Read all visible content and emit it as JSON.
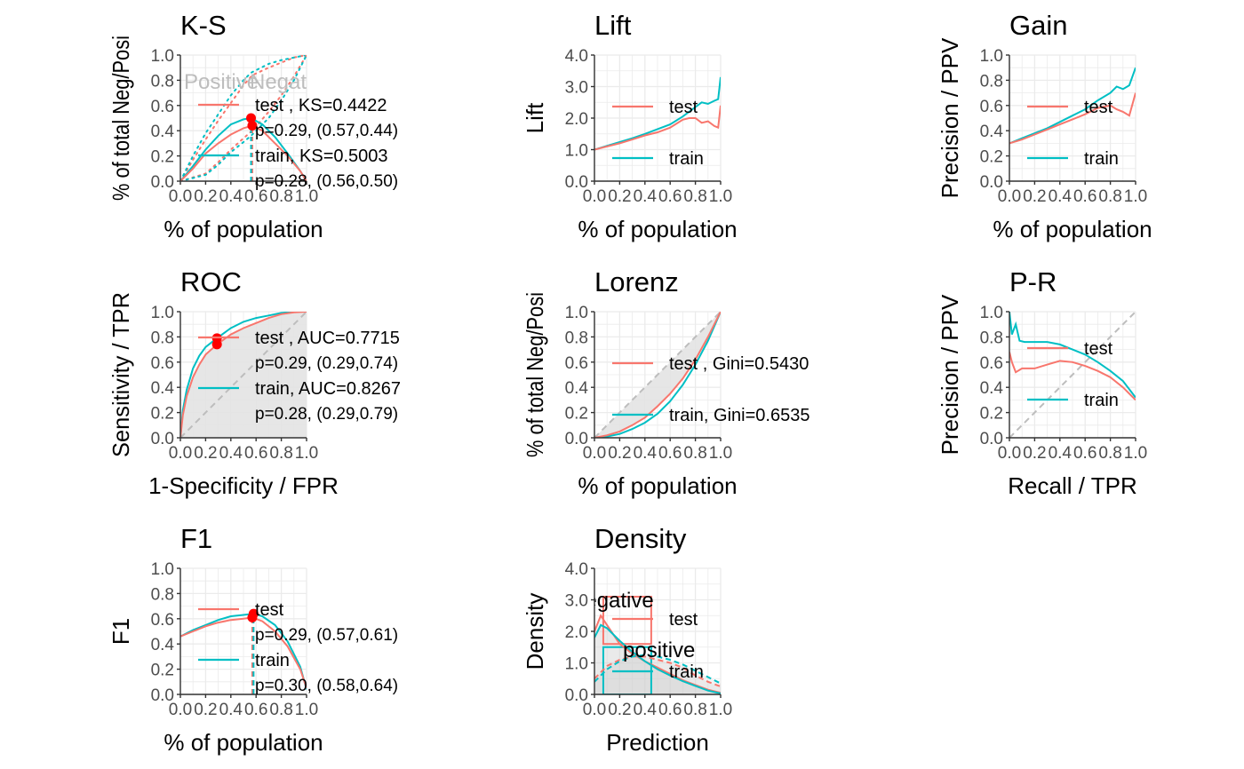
{
  "colors": {
    "test": "#F8766D",
    "train": "#00BFC4",
    "point": "#FF0000",
    "grid": "#EBEBEB",
    "diag": "#BDBDBD",
    "shade": "#E3E3E3"
  },
  "panels": [
    {
      "id": "ks",
      "title": "K-S",
      "xlabel": "% of population",
      "ylabel": "% of total Neg/Posi",
      "xticks": [
        "0.0",
        "0.2",
        "0.4",
        "0.6",
        "0.8",
        "1.0"
      ],
      "yticks": [
        "0.0",
        "0.2",
        "0.4",
        "0.6",
        "0.8",
        "1.0"
      ],
      "annotations": [
        "Positive",
        "Negative"
      ],
      "legend": [
        {
          "series": "test",
          "lines": [
            "test , KS=0.4422",
            "p=0.29, (0.57,0.44)"
          ]
        },
        {
          "series": "train",
          "lines": [
            "train, KS=0.5003",
            "p=0.28, (0.56,0.50)"
          ]
        }
      ]
    },
    {
      "id": "lift",
      "title": "Lift",
      "xlabel": "% of population",
      "ylabel": "Lift",
      "xticks": [
        "0.0",
        "0.2",
        "0.4",
        "0.6",
        "0.8",
        "1.0"
      ],
      "yticks": [
        "0.0",
        "1.0",
        "2.0",
        "3.0",
        "4.0"
      ],
      "legend": [
        {
          "series": "test",
          "lines": [
            "test"
          ]
        },
        {
          "series": "train",
          "lines": [
            "train"
          ]
        }
      ]
    },
    {
      "id": "gain",
      "title": "Gain",
      "xlabel": "% of population",
      "ylabel": "Precision / PPV",
      "xticks": [
        "0.0",
        "0.2",
        "0.4",
        "0.6",
        "0.8",
        "1.0"
      ],
      "yticks": [
        "0.0",
        "0.2",
        "0.4",
        "0.6",
        "0.8",
        "1.0"
      ],
      "legend": [
        {
          "series": "test",
          "lines": [
            "test"
          ]
        },
        {
          "series": "train",
          "lines": [
            "train"
          ]
        }
      ]
    },
    {
      "id": "roc",
      "title": "ROC",
      "xlabel": "1-Specificity / FPR",
      "ylabel": "Sensitivity / TPR",
      "xticks": [
        "0.0",
        "0.2",
        "0.4",
        "0.6",
        "0.8",
        "1.0"
      ],
      "yticks": [
        "0.0",
        "0.2",
        "0.4",
        "0.6",
        "0.8",
        "1.0"
      ],
      "legend": [
        {
          "series": "test",
          "lines": [
            "test , AUC=0.7715",
            "p=0.29, (0.29,0.74)"
          ]
        },
        {
          "series": "train",
          "lines": [
            "train, AUC=0.8267",
            "p=0.28, (0.29,0.79)"
          ]
        }
      ]
    },
    {
      "id": "lorenz",
      "title": "Lorenz",
      "xlabel": "% of population",
      "ylabel": "% of total Neg/Posi",
      "xticks": [
        "0.0",
        "0.2",
        "0.4",
        "0.6",
        "0.8",
        "1.0"
      ],
      "yticks": [
        "0.0",
        "0.2",
        "0.4",
        "0.6",
        "0.8",
        "1.0"
      ],
      "legend": [
        {
          "series": "test",
          "lines": [
            "test , Gini=0.5430"
          ]
        },
        {
          "series": "train",
          "lines": [
            "train, Gini=0.6535"
          ]
        }
      ]
    },
    {
      "id": "pr",
      "title": "P-R",
      "xlabel": "Recall / TPR",
      "ylabel": "Precision / PPV",
      "xticks": [
        "0.0",
        "0.2",
        "0.4",
        "0.6",
        "0.8",
        "1.0"
      ],
      "yticks": [
        "0.0",
        "0.2",
        "0.4",
        "0.6",
        "0.8",
        "1.0"
      ],
      "legend": [
        {
          "series": "test",
          "lines": [
            "test"
          ]
        },
        {
          "series": "train",
          "lines": [
            "train"
          ]
        }
      ]
    },
    {
      "id": "f1",
      "title": "F1",
      "xlabel": "% of population",
      "ylabel": "F1",
      "xticks": [
        "0.0",
        "0.2",
        "0.4",
        "0.6",
        "0.8",
        "1.0"
      ],
      "yticks": [
        "0.0",
        "0.2",
        "0.4",
        "0.6",
        "0.8",
        "1.0"
      ],
      "legend": [
        {
          "series": "test",
          "lines": [
            "test",
            "p=0.29, (0.57,0.61)"
          ]
        },
        {
          "series": "train",
          "lines": [
            "train",
            "p=0.30, (0.58,0.64)"
          ]
        }
      ]
    },
    {
      "id": "density",
      "title": "Density",
      "xlabel": "Prediction",
      "ylabel": "Density",
      "xticks": [
        "0.0",
        "0.2",
        "0.4",
        "0.6",
        "0.8",
        "1.0"
      ],
      "yticks": [
        "0.0",
        "1.0",
        "2.0",
        "3.0",
        "4.0"
      ],
      "annotations": [
        "negative",
        "positive"
      ],
      "legend": [
        {
          "series": "test",
          "lines": [
            "test"
          ]
        },
        {
          "series": "train",
          "lines": [
            "train"
          ]
        }
      ]
    }
  ],
  "chart_data": [
    {
      "type": "line",
      "title": "K-S",
      "xlabel": "% of population",
      "ylabel": "% of total Neg/Posi",
      "xlim": [
        0,
        1
      ],
      "ylim": [
        0,
        1
      ],
      "series": [
        {
          "name": "test",
          "x": [
            0,
            0.1,
            0.2,
            0.3,
            0.4,
            0.5,
            0.57,
            0.65,
            0.75,
            0.85,
            0.95,
            1.0
          ],
          "y": [
            0,
            0.1,
            0.22,
            0.3,
            0.37,
            0.42,
            0.44,
            0.4,
            0.3,
            0.2,
            0.08,
            0
          ]
        },
        {
          "name": "train",
          "x": [
            0,
            0.1,
            0.2,
            0.3,
            0.4,
            0.5,
            0.56,
            0.65,
            0.75,
            0.85,
            0.95,
            1.0
          ],
          "y": [
            0,
            0.12,
            0.25,
            0.36,
            0.45,
            0.49,
            0.5,
            0.45,
            0.35,
            0.22,
            0.08,
            0
          ]
        }
      ],
      "cumulative": [
        {
          "name": "test positive",
          "x": [
            0,
            0.1,
            0.2,
            0.3,
            0.4,
            0.5,
            0.57,
            0.7,
            0.8,
            0.9,
            1.0
          ],
          "y": [
            0,
            0.17,
            0.33,
            0.48,
            0.62,
            0.76,
            0.84,
            0.9,
            0.94,
            0.98,
            1.0
          ]
        },
        {
          "name": "train positive",
          "x": [
            0,
            0.1,
            0.2,
            0.3,
            0.4,
            0.5,
            0.56,
            0.7,
            0.8,
            0.9,
            1.0
          ],
          "y": [
            0,
            0.2,
            0.38,
            0.53,
            0.68,
            0.8,
            0.86,
            0.93,
            0.96,
            0.98,
            1.0
          ]
        },
        {
          "name": "test negative",
          "x": [
            0,
            0.2,
            0.3,
            0.4,
            0.5,
            0.57,
            0.7,
            0.8,
            0.9,
            1.0
          ],
          "y": [
            0,
            0.06,
            0.15,
            0.25,
            0.34,
            0.4,
            0.55,
            0.68,
            0.83,
            1.0
          ]
        },
        {
          "name": "train negative",
          "x": [
            0,
            0.2,
            0.3,
            0.4,
            0.5,
            0.56,
            0.7,
            0.8,
            0.9,
            1.0
          ],
          "y": [
            0,
            0.05,
            0.13,
            0.23,
            0.31,
            0.36,
            0.5,
            0.64,
            0.8,
            1.0
          ]
        }
      ],
      "markers": [
        {
          "series": "test",
          "x": 0.57,
          "y": 0.44
        },
        {
          "series": "train",
          "x": 0.56,
          "y": 0.5
        }
      ]
    },
    {
      "type": "line",
      "title": "Lift",
      "xlabel": "% of population",
      "ylabel": "Lift",
      "xlim": [
        0,
        1
      ],
      "ylim": [
        0,
        4
      ],
      "series": [
        {
          "name": "test",
          "x": [
            0,
            0.1,
            0.2,
            0.3,
            0.4,
            0.5,
            0.6,
            0.7,
            0.75,
            0.8,
            0.85,
            0.9,
            0.95,
            0.98,
            1.0
          ],
          "y": [
            1.0,
            1.1,
            1.2,
            1.32,
            1.45,
            1.55,
            1.7,
            1.95,
            2.0,
            2.0,
            1.85,
            1.9,
            1.75,
            1.7,
            2.4
          ]
        },
        {
          "name": "train",
          "x": [
            0,
            0.1,
            0.2,
            0.3,
            0.4,
            0.5,
            0.6,
            0.7,
            0.75,
            0.8,
            0.85,
            0.9,
            0.95,
            0.98,
            1.0
          ],
          "y": [
            1.0,
            1.12,
            1.24,
            1.36,
            1.5,
            1.65,
            1.8,
            2.05,
            2.2,
            2.35,
            2.5,
            2.45,
            2.55,
            2.6,
            3.3
          ]
        }
      ]
    },
    {
      "type": "line",
      "title": "Gain",
      "xlabel": "% of population",
      "ylabel": "Precision / PPV",
      "xlim": [
        0,
        1
      ],
      "ylim": [
        0,
        1
      ],
      "series": [
        {
          "name": "test",
          "x": [
            0,
            0.1,
            0.2,
            0.3,
            0.4,
            0.5,
            0.6,
            0.7,
            0.8,
            0.85,
            0.9,
            0.95,
            1.0
          ],
          "y": [
            0.3,
            0.33,
            0.37,
            0.41,
            0.45,
            0.49,
            0.53,
            0.58,
            0.6,
            0.57,
            0.55,
            0.52,
            0.7
          ]
        },
        {
          "name": "train",
          "x": [
            0,
            0.1,
            0.2,
            0.3,
            0.4,
            0.5,
            0.6,
            0.7,
            0.8,
            0.85,
            0.9,
            0.95,
            1.0
          ],
          "y": [
            0.3,
            0.34,
            0.38,
            0.42,
            0.47,
            0.52,
            0.57,
            0.64,
            0.7,
            0.75,
            0.73,
            0.76,
            0.9
          ]
        }
      ]
    },
    {
      "type": "line",
      "title": "ROC",
      "xlabel": "1-Specificity / FPR",
      "ylabel": "Sensitivity / TPR",
      "xlim": [
        0,
        1
      ],
      "ylim": [
        0,
        1
      ],
      "series": [
        {
          "name": "test",
          "x": [
            0,
            0.02,
            0.05,
            0.1,
            0.15,
            0.2,
            0.29,
            0.4,
            0.5,
            0.6,
            0.7,
            0.8,
            0.9,
            1.0
          ],
          "y": [
            0,
            0.18,
            0.33,
            0.48,
            0.58,
            0.66,
            0.74,
            0.82,
            0.87,
            0.91,
            0.95,
            0.98,
            0.995,
            1.0
          ]
        },
        {
          "name": "train",
          "x": [
            0,
            0.02,
            0.05,
            0.1,
            0.15,
            0.2,
            0.29,
            0.4,
            0.5,
            0.6,
            0.7,
            0.8,
            0.9,
            1.0
          ],
          "y": [
            0,
            0.22,
            0.38,
            0.55,
            0.65,
            0.72,
            0.79,
            0.87,
            0.92,
            0.95,
            0.97,
            0.99,
            1.0,
            1.0
          ]
        }
      ],
      "markers": [
        {
          "series": "test",
          "x": 0.29,
          "y": 0.74
        },
        {
          "series": "train",
          "x": 0.29,
          "y": 0.79
        }
      ]
    },
    {
      "type": "line",
      "title": "Lorenz",
      "xlabel": "% of population",
      "ylabel": "% of total Neg/Posi",
      "xlim": [
        0,
        1
      ],
      "ylim": [
        0,
        1
      ],
      "series": [
        {
          "name": "test",
          "x": [
            0,
            0.1,
            0.2,
            0.3,
            0.4,
            0.5,
            0.6,
            0.7,
            0.8,
            0.9,
            1.0
          ],
          "y": [
            0,
            0.02,
            0.05,
            0.1,
            0.16,
            0.25,
            0.35,
            0.47,
            0.62,
            0.8,
            1.0
          ]
        },
        {
          "name": "train",
          "x": [
            0,
            0.1,
            0.2,
            0.3,
            0.4,
            0.5,
            0.6,
            0.7,
            0.8,
            0.9,
            1.0
          ],
          "y": [
            0,
            0.01,
            0.03,
            0.07,
            0.12,
            0.19,
            0.29,
            0.42,
            0.58,
            0.77,
            1.0
          ]
        }
      ]
    },
    {
      "type": "line",
      "title": "P-R",
      "xlabel": "Recall / TPR",
      "ylabel": "Precision / PPV",
      "xlim": [
        0,
        1
      ],
      "ylim": [
        0,
        1
      ],
      "series": [
        {
          "name": "test",
          "x": [
            0,
            0.02,
            0.05,
            0.1,
            0.2,
            0.3,
            0.4,
            0.5,
            0.6,
            0.7,
            0.8,
            0.9,
            1.0
          ],
          "y": [
            0.68,
            0.6,
            0.52,
            0.55,
            0.55,
            0.58,
            0.61,
            0.6,
            0.57,
            0.53,
            0.48,
            0.4,
            0.3
          ]
        },
        {
          "name": "train",
          "x": [
            0,
            0.02,
            0.05,
            0.08,
            0.12,
            0.2,
            0.3,
            0.4,
            0.5,
            0.6,
            0.7,
            0.8,
            0.9,
            1.0
          ],
          "y": [
            1.0,
            0.82,
            0.9,
            0.77,
            0.76,
            0.76,
            0.76,
            0.74,
            0.7,
            0.66,
            0.6,
            0.53,
            0.45,
            0.32
          ]
        }
      ]
    },
    {
      "type": "line",
      "title": "F1",
      "xlabel": "% of population",
      "ylabel": "F1",
      "xlim": [
        0,
        1
      ],
      "ylim": [
        0,
        1
      ],
      "series": [
        {
          "name": "test",
          "x": [
            0,
            0.1,
            0.2,
            0.3,
            0.4,
            0.5,
            0.57,
            0.65,
            0.75,
            0.85,
            0.95,
            1.0
          ],
          "y": [
            0.46,
            0.5,
            0.54,
            0.57,
            0.59,
            0.6,
            0.61,
            0.58,
            0.5,
            0.38,
            0.2,
            0.05
          ]
        },
        {
          "name": "train",
          "x": [
            0,
            0.1,
            0.2,
            0.3,
            0.4,
            0.5,
            0.58,
            0.65,
            0.75,
            0.85,
            0.95,
            1.0
          ],
          "y": [
            0.46,
            0.51,
            0.55,
            0.59,
            0.62,
            0.63,
            0.64,
            0.62,
            0.55,
            0.42,
            0.22,
            0.04
          ]
        }
      ],
      "markers": [
        {
          "series": "test",
          "x": 0.57,
          "y": 0.61
        },
        {
          "series": "train",
          "x": 0.58,
          "y": 0.64
        }
      ]
    },
    {
      "type": "area",
      "title": "Density",
      "xlabel": "Prediction",
      "ylabel": "Density",
      "xlim": [
        0,
        1
      ],
      "ylim": [
        0,
        4
      ],
      "series": [
        {
          "name": "test negative",
          "x": [
            0,
            0.05,
            0.1,
            0.2,
            0.3,
            0.4,
            0.5,
            0.6,
            0.7,
            0.8,
            0.9,
            1.0
          ],
          "y": [
            2.0,
            2.5,
            2.2,
            1.6,
            1.3,
            1.05,
            0.85,
            0.65,
            0.45,
            0.3,
            0.15,
            0.05
          ]
        },
        {
          "name": "train negative",
          "x": [
            0,
            0.05,
            0.1,
            0.2,
            0.3,
            0.4,
            0.5,
            0.6,
            0.7,
            0.8,
            0.9,
            1.0
          ],
          "y": [
            1.8,
            2.2,
            2.1,
            1.7,
            1.35,
            1.05,
            0.8,
            0.6,
            0.42,
            0.27,
            0.12,
            0.03
          ]
        },
        {
          "name": "test positive",
          "x": [
            0,
            0.1,
            0.2,
            0.3,
            0.4,
            0.5,
            0.6,
            0.7,
            0.8,
            0.9,
            1.0
          ],
          "y": [
            0.5,
            0.9,
            1.1,
            1.2,
            1.2,
            1.1,
            1.0,
            0.85,
            0.6,
            0.4,
            0.25
          ]
        },
        {
          "name": "train positive",
          "x": [
            0,
            0.1,
            0.2,
            0.3,
            0.4,
            0.5,
            0.6,
            0.7,
            0.8,
            0.9,
            1.0
          ],
          "y": [
            0.4,
            0.8,
            1.05,
            1.2,
            1.25,
            1.2,
            1.1,
            0.95,
            0.75,
            0.55,
            0.35
          ]
        }
      ],
      "threshold_boxes": [
        {
          "series": "test",
          "x": [
            0.07,
            0.45
          ],
          "y": [
            1.6,
            3.1
          ]
        },
        {
          "series": "train",
          "x": [
            0.07,
            0.45
          ],
          "y": [
            0,
            1.5
          ]
        }
      ]
    }
  ]
}
